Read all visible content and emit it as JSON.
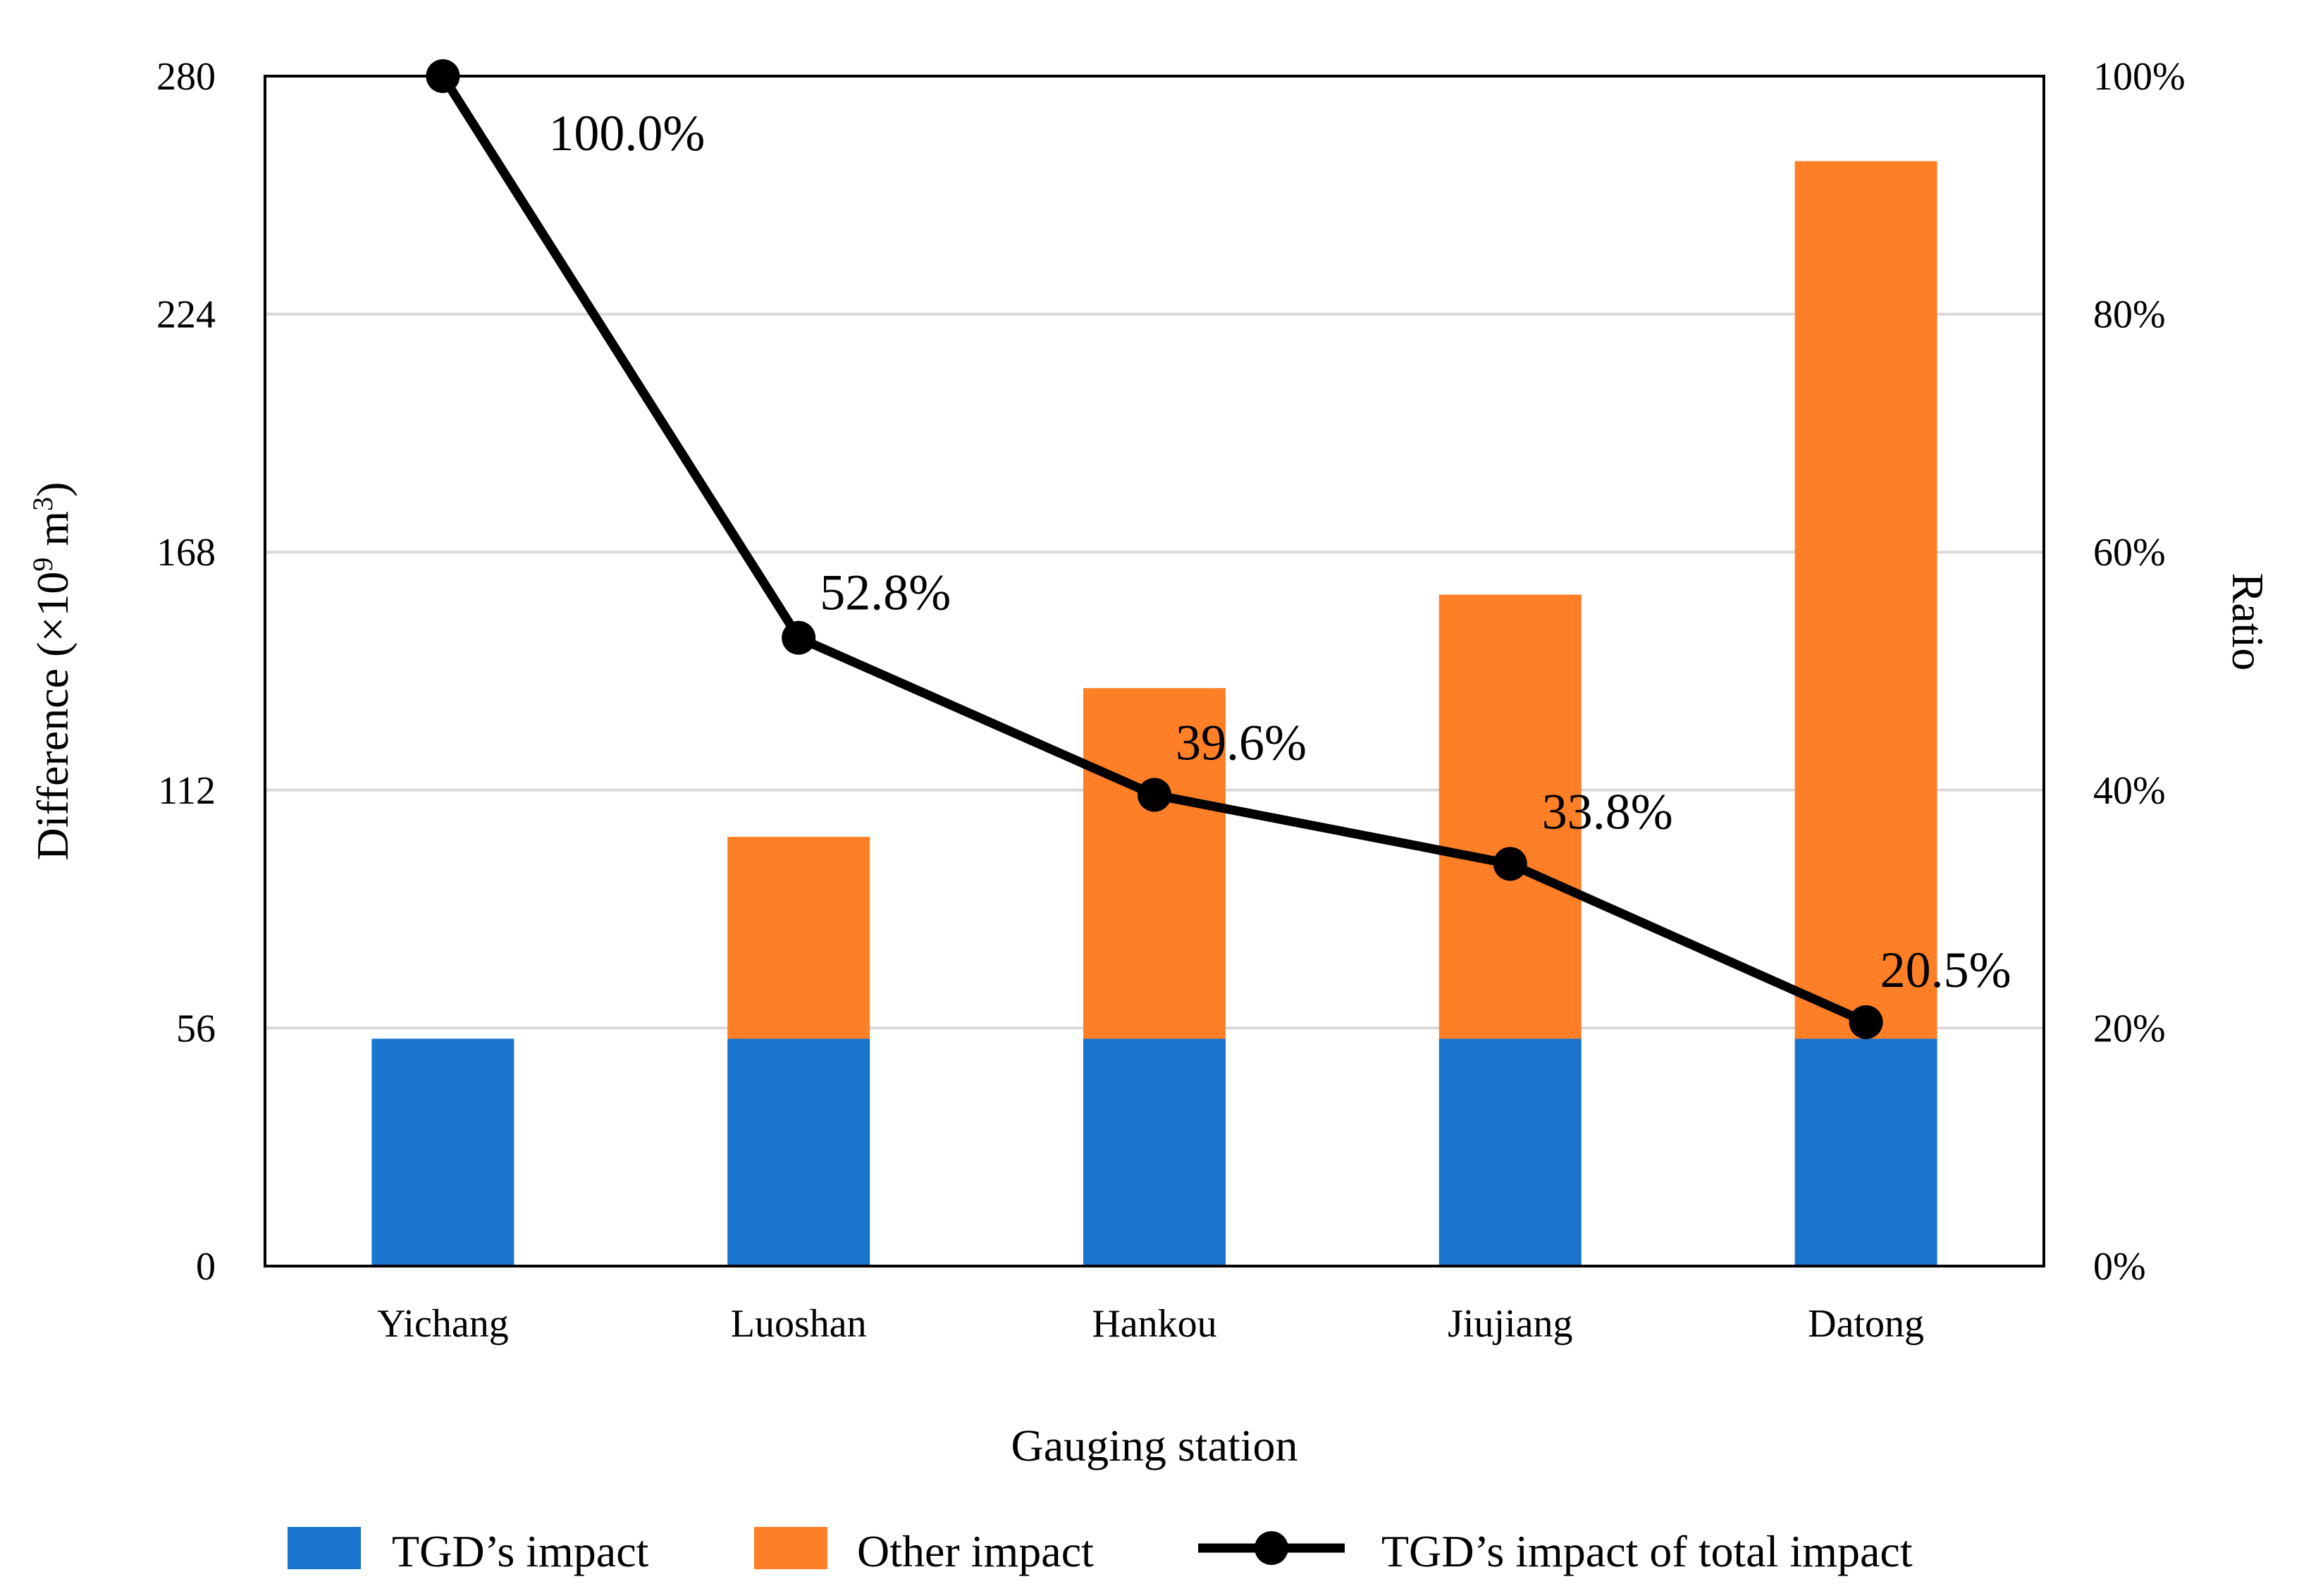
{
  "chart_data": {
    "type": "bar",
    "stacked": true,
    "xlabel": "Gauging station",
    "ylabel": "Difference (×10⁹ m³)",
    "y2label": "Ratio",
    "categories": [
      "Yichang",
      "Luoshan",
      "Hankou",
      "Jiujiang",
      "Datong"
    ],
    "ylim": [
      0,
      280
    ],
    "yticks": [
      0,
      56,
      112,
      168,
      224,
      280
    ],
    "y2lim": [
      0,
      100
    ],
    "y2ticks": [
      "0%",
      "20%",
      "40%",
      "60%",
      "80%",
      "100%"
    ],
    "y2tick_values": [
      0,
      20,
      40,
      60,
      80,
      100
    ],
    "series": [
      {
        "name": "TGD’s impact",
        "type": "bar",
        "axis": "left",
        "color": "#1874CD",
        "values": [
          53.5,
          53.5,
          53.5,
          53.5,
          53.5
        ]
      },
      {
        "name": "Other impact",
        "type": "bar",
        "axis": "left",
        "color": "#FF7F27",
        "values": [
          0,
          47.5,
          82.5,
          104.5,
          206.5
        ]
      },
      {
        "name": "TGD’s impact of total impact",
        "type": "line",
        "axis": "right",
        "color": "#000000",
        "values": [
          100.0,
          52.8,
          39.6,
          33.8,
          20.5
        ],
        "labels": [
          "100.0%",
          "52.8%",
          "39.6%",
          "33.8%",
          "20.5%"
        ]
      }
    ],
    "grid": true,
    "legend_position": "bottom"
  }
}
